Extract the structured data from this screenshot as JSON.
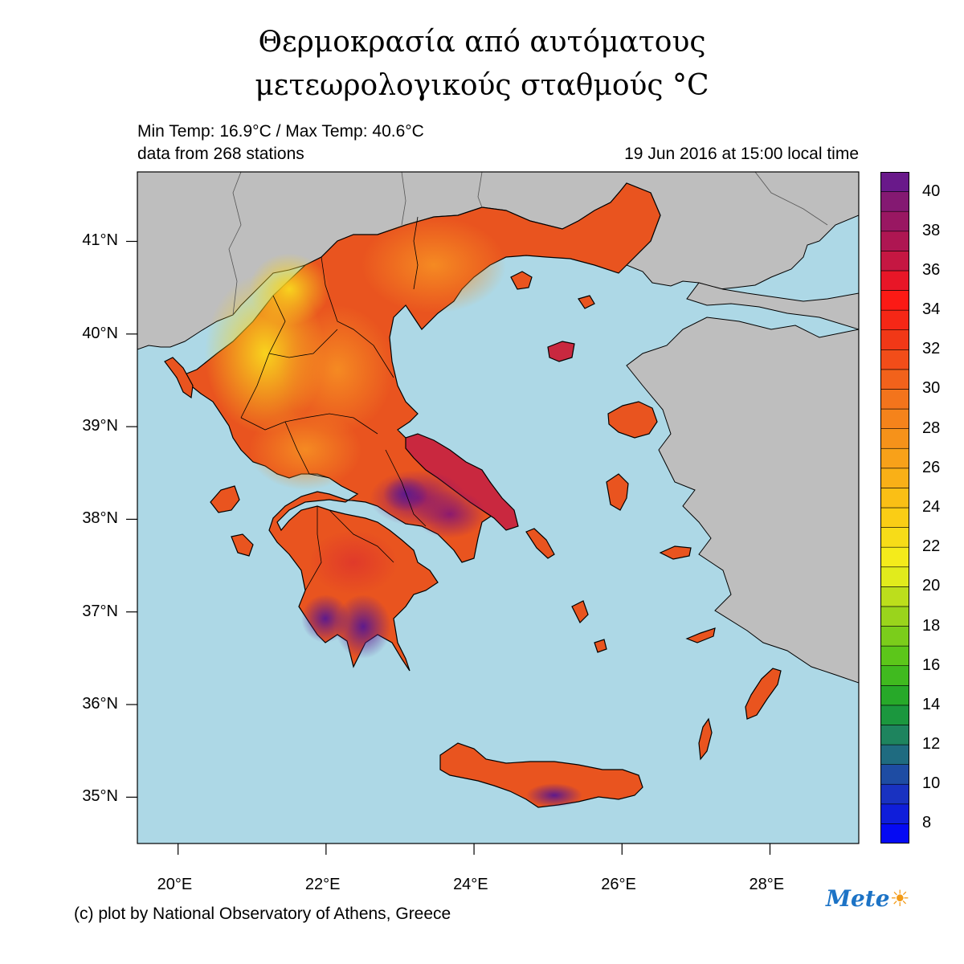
{
  "title": {
    "line1": "Θερμοκρασία από αυτόματους",
    "line2": "μετεωρολογικούς σταθμούς",
    "unit": "°C"
  },
  "info": {
    "min_max": "Min Temp: 16.9°C / Max Temp: 40.6°C",
    "stations": "data from 268 stations",
    "datetime": "19 Jun 2016 at 15:00 local time"
  },
  "stats": {
    "min_temp_c": 16.9,
    "max_temp_c": 40.6,
    "station_count": 268
  },
  "axes": {
    "lat_labels": [
      "41°N",
      "40°N",
      "39°N",
      "38°N",
      "37°N",
      "36°N",
      "35°N"
    ],
    "lon_labels": [
      "20°E",
      "22°E",
      "24°E",
      "26°E",
      "28°E"
    ],
    "lat_range": [
      34.5,
      41.75
    ],
    "lon_range": [
      19.45,
      29.2
    ]
  },
  "colorbar": {
    "range": [
      7,
      41
    ],
    "step": 1,
    "labels": [
      "40",
      "38",
      "36",
      "34",
      "32",
      "30",
      "28",
      "26",
      "24",
      "22",
      "20",
      "18",
      "16",
      "14",
      "12",
      "10",
      "8"
    ]
  },
  "colors": {
    "sea": "#add8e6",
    "land_outside": "#bebebe",
    "border": "#000000"
  },
  "credit": "(c) plot by National Observatory of Athens, Greece",
  "logo": {
    "text": "Mete",
    "sun": "☀"
  }
}
